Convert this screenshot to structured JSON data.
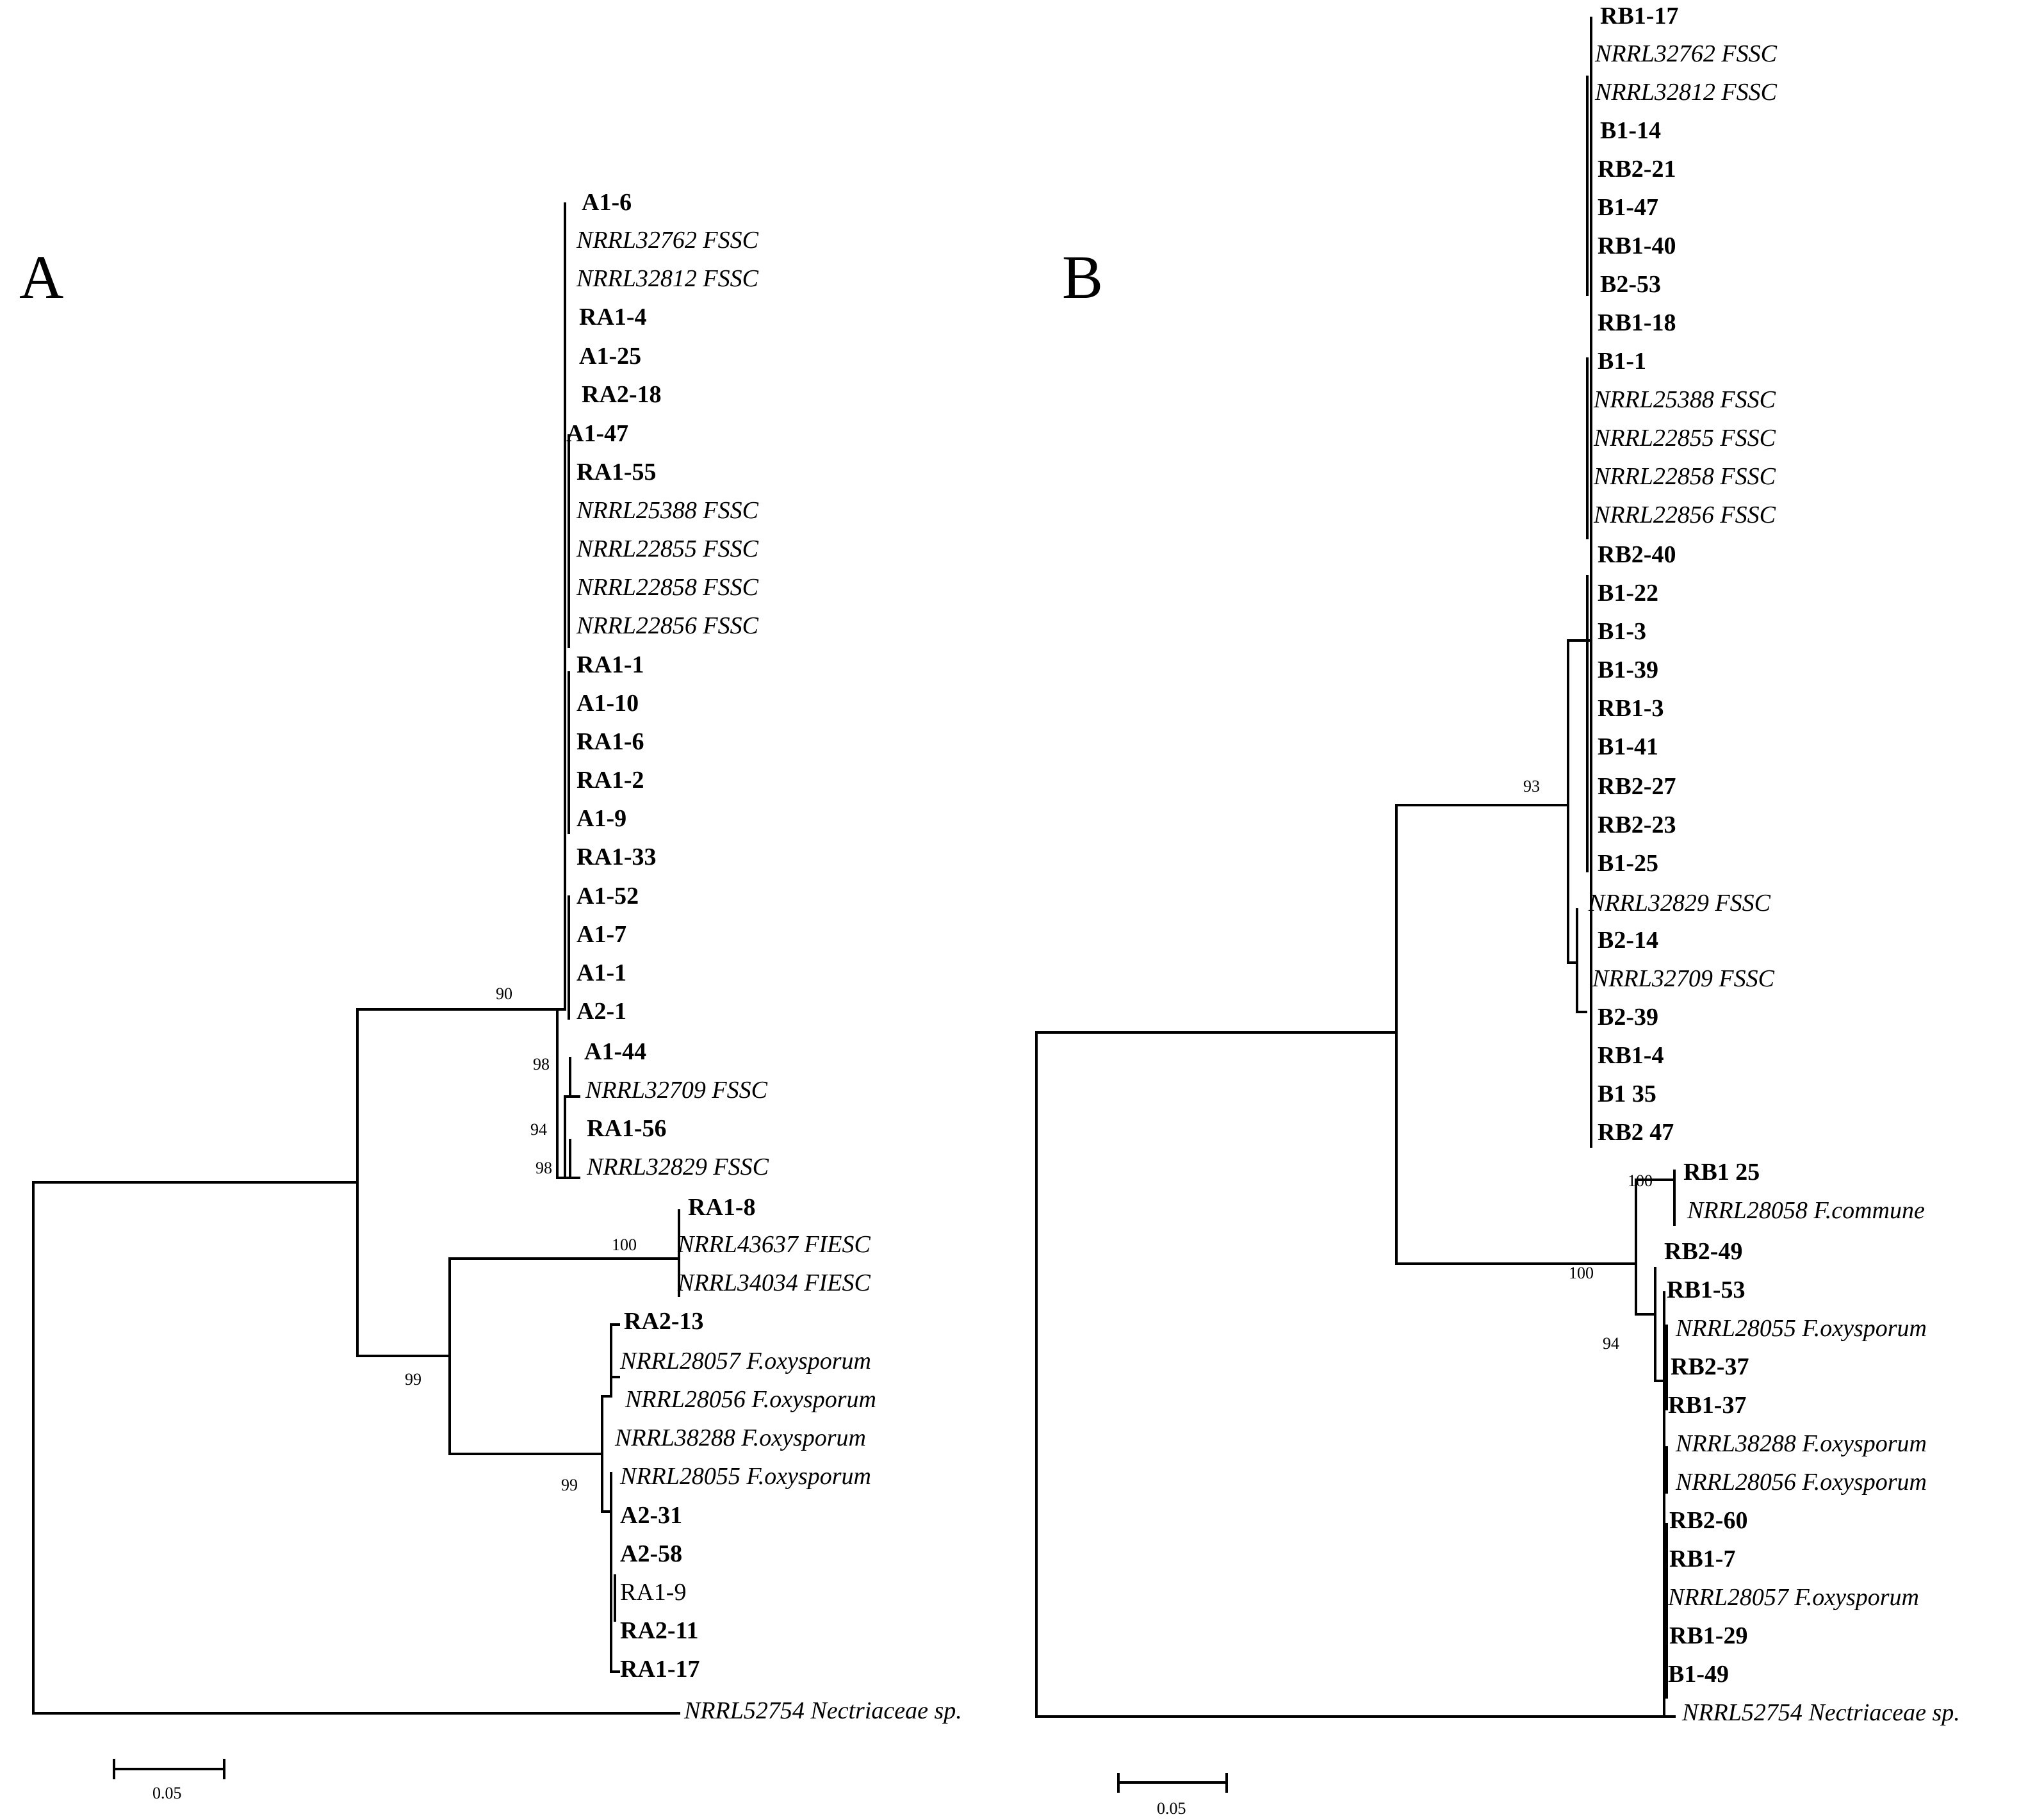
{
  "figure": {
    "panels": [
      {
        "id": "A",
        "label": "A",
        "scale_bar": {
          "label": "0.05",
          "length": 0.05
        },
        "bootstrap": [
          "90",
          "98",
          "94",
          "98",
          "100",
          "99",
          "99"
        ],
        "leaves": [
          {
            "name": "A1-6",
            "style": "bold"
          },
          {
            "name": "NRRL32762 FSSC",
            "style": "italic"
          },
          {
            "name": "NRRL32812 FSSC",
            "style": "italic"
          },
          {
            "name": "RA1-4",
            "style": "bold"
          },
          {
            "name": "A1-25",
            "style": "bold"
          },
          {
            "name": "RA2-18",
            "style": "bold"
          },
          {
            "name": "A1-47",
            "style": "bold"
          },
          {
            "name": "RA1-55",
            "style": "bold"
          },
          {
            "name": "NRRL25388 FSSC",
            "style": "italic"
          },
          {
            "name": "NRRL22855 FSSC",
            "style": "italic"
          },
          {
            "name": "NRRL22858 FSSC",
            "style": "italic"
          },
          {
            "name": "NRRL22856 FSSC",
            "style": "italic"
          },
          {
            "name": "RA1-1",
            "style": "bold"
          },
          {
            "name": "A1-10",
            "style": "bold"
          },
          {
            "name": "RA1-6",
            "style": "bold"
          },
          {
            "name": "RA1-2",
            "style": "bold"
          },
          {
            "name": "A1-9",
            "style": "bold"
          },
          {
            "name": "RA1-33",
            "style": "bold"
          },
          {
            "name": "A1-52",
            "style": "bold"
          },
          {
            "name": "A1-7",
            "style": "bold"
          },
          {
            "name": "A1-1",
            "style": "bold"
          },
          {
            "name": "A2-1",
            "style": "bold"
          },
          {
            "name": "A1-44",
            "style": "bold"
          },
          {
            "name": "NRRL32709 FSSC",
            "style": "italic"
          },
          {
            "name": "RA1-56",
            "style": "bold"
          },
          {
            "name": "NRRL32829 FSSC",
            "style": "italic"
          },
          {
            "name": "RA1-8",
            "style": "bold"
          },
          {
            "name": "NRRL43637 FIESC",
            "style": "italic"
          },
          {
            "name": "NRRL34034 FIESC",
            "style": "italic"
          },
          {
            "name": "RA2-13",
            "style": "bold"
          },
          {
            "name": "NRRL28057 F.oxysporum",
            "style": "italic"
          },
          {
            "name": "NRRL28056 F.oxysporum",
            "style": "italic"
          },
          {
            "name": "NRRL38288 F.oxysporum",
            "style": "italic"
          },
          {
            "name": "NRRL28055 F.oxysporum",
            "style": "italic"
          },
          {
            "name": "A2-31",
            "style": "bold"
          },
          {
            "name": "A2-58",
            "style": "bold"
          },
          {
            "name": "RA1-9",
            "style": "normal"
          },
          {
            "name": "RA2-11",
            "style": "bold"
          },
          {
            "name": "RA1-17",
            "style": "bold"
          },
          {
            "name": "NRRL52754 Nectriaceae sp.",
            "style": "italic"
          }
        ]
      },
      {
        "id": "B",
        "label": "B",
        "scale_bar": {
          "label": "0.05",
          "length": 0.05
        },
        "bootstrap": [
          "93",
          "100",
          "100",
          "94"
        ],
        "leaves": [
          {
            "name": "RB1-17",
            "style": "bold"
          },
          {
            "name": "NRRL32762 FSSC",
            "style": "italic"
          },
          {
            "name": "NRRL32812 FSSC",
            "style": "italic"
          },
          {
            "name": "B1-14",
            "style": "bold"
          },
          {
            "name": "RB2-21",
            "style": "bold"
          },
          {
            "name": "B1-47",
            "style": "bold"
          },
          {
            "name": "RB1-40",
            "style": "bold"
          },
          {
            "name": "B2-53",
            "style": "bold"
          },
          {
            "name": "RB1-18",
            "style": "bold"
          },
          {
            "name": "B1-1",
            "style": "bold"
          },
          {
            "name": "NRRL25388 FSSC",
            "style": "italic"
          },
          {
            "name": "NRRL22855 FSSC",
            "style": "italic"
          },
          {
            "name": "NRRL22858 FSSC",
            "style": "italic"
          },
          {
            "name": "NRRL22856 FSSC",
            "style": "italic"
          },
          {
            "name": "RB2-40",
            "style": "bold"
          },
          {
            "name": "B1-22",
            "style": "bold"
          },
          {
            "name": "B1-3",
            "style": "bold"
          },
          {
            "name": "B1-39",
            "style": "bold"
          },
          {
            "name": "RB1-3",
            "style": "bold"
          },
          {
            "name": "B1-41",
            "style": "bold"
          },
          {
            "name": "RB2-27",
            "style": "bold"
          },
          {
            "name": "RB2-23",
            "style": "bold"
          },
          {
            "name": "B1-25",
            "style": "bold"
          },
          {
            "name": "NRRL32829 FSSC",
            "style": "italic"
          },
          {
            "name": "B2-14",
            "style": "bold"
          },
          {
            "name": "NRRL32709 FSSC",
            "style": "italic"
          },
          {
            "name": "B2-39",
            "style": "bold"
          },
          {
            "name": "RB1-4",
            "style": "bold"
          },
          {
            "name": "B1 35",
            "style": "bold"
          },
          {
            "name": "RB2 47",
            "style": "bold"
          },
          {
            "name": "RB1 25",
            "style": "bold"
          },
          {
            "name": "NRRL28058 F.commune",
            "style": "italic"
          },
          {
            "name": "RB2-49",
            "style": "bold"
          },
          {
            "name": "RB1-53",
            "style": "bold"
          },
          {
            "name": "NRRL28055 F.oxysporum",
            "style": "italic"
          },
          {
            "name": "RB2-37",
            "style": "bold"
          },
          {
            "name": "RB1-37",
            "style": "bold"
          },
          {
            "name": "NRRL38288 F.oxysporum",
            "style": "italic"
          },
          {
            "name": "NRRL28056 F.oxysporum",
            "style": "italic"
          },
          {
            "name": "RB2-60",
            "style": "bold"
          },
          {
            "name": "RB1-7",
            "style": "bold"
          },
          {
            "name": "NRRL28057 F.oxysporum",
            "style": "italic"
          },
          {
            "name": "RB1-29",
            "style": "bold"
          },
          {
            "name": "B1-49",
            "style": "bold"
          },
          {
            "name": "NRRL52754 Nectriaceae sp.",
            "style": "italic"
          }
        ]
      }
    ]
  }
}
